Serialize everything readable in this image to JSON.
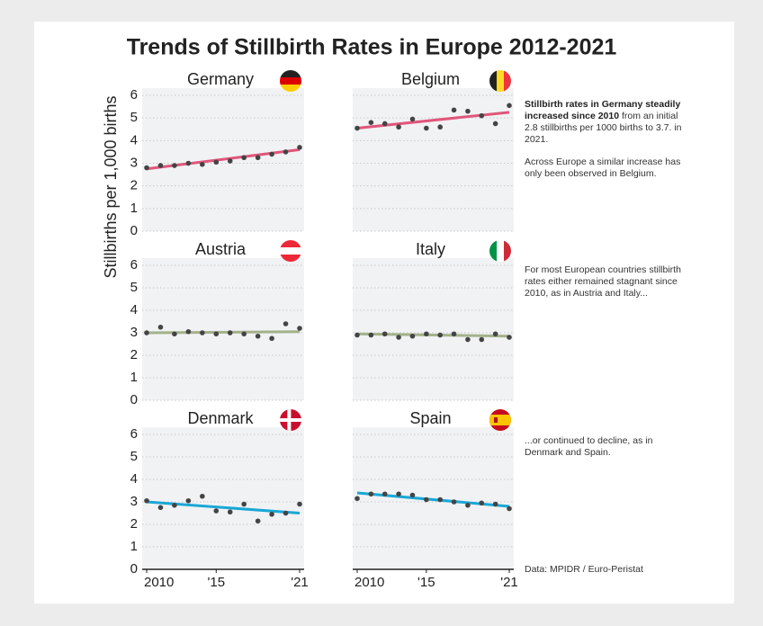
{
  "title": "Trends of Stillbirth Rates in Europe 2012-2021",
  "ylabel": "Stillbirths per 1,000 births",
  "annotations": [
    {
      "bold": "Stillbirth rates in Germany steadily increased since 2010",
      "text": "from an initial 2.8 stillbirths per 1000 births to 3.7. in 2021."
    },
    {
      "text": "Across Europe a similar increase has only been observed in Belgium."
    },
    {
      "text": "For most European countries stillbirth rates either remained stagnant since 2010, as in Austria and Italy..."
    },
    {
      "text": "...or continued to decline, as in Denmark and Spain."
    }
  ],
  "source": "Data: MPIDR / Euro-Peristat",
  "chart_data": [
    {
      "type": "scatter",
      "title": "Germany",
      "x": [
        2010,
        2011,
        2012,
        2013,
        2014,
        2015,
        2016,
        2017,
        2018,
        2019,
        2020,
        2021
      ],
      "values": [
        2.8,
        2.9,
        2.9,
        3.0,
        2.95,
        3.05,
        3.1,
        3.25,
        3.25,
        3.4,
        3.5,
        3.7
      ],
      "color": "#444444",
      "trend": [
        2.75,
        3.6
      ],
      "trend_color": "#e0567a",
      "xlim": [
        2010,
        2021
      ],
      "ylim": [
        0,
        6
      ],
      "yticks": [
        0,
        1,
        2,
        3,
        4,
        5,
        6
      ],
      "grid": true
    },
    {
      "type": "scatter",
      "title": "Belgium",
      "x": [
        2010,
        2011,
        2012,
        2013,
        2014,
        2015,
        2016,
        2017,
        2018,
        2019,
        2020,
        2021
      ],
      "values": [
        4.55,
        4.8,
        4.75,
        4.6,
        4.95,
        4.55,
        4.6,
        5.35,
        5.3,
        5.1,
        4.75,
        5.55
      ],
      "color": "#444444",
      "trend": [
        4.55,
        5.25
      ],
      "trend_color": "#e0567a",
      "xlim": [
        2010,
        2021
      ],
      "ylim": [
        0,
        6
      ],
      "yticks": [
        0,
        1,
        2,
        3,
        4,
        5,
        6
      ],
      "grid": true
    },
    {
      "type": "scatter",
      "title": "Austria",
      "x": [
        2010,
        2011,
        2012,
        2013,
        2014,
        2015,
        2016,
        2017,
        2018,
        2019,
        2020,
        2021
      ],
      "values": [
        3.0,
        3.25,
        2.95,
        3.05,
        3.0,
        2.95,
        3.0,
        2.95,
        2.85,
        2.75,
        3.4,
        3.2
      ],
      "color": "#444444",
      "trend": [
        3.0,
        3.05
      ],
      "trend_color": "#a3b18a",
      "xlim": [
        2010,
        2021
      ],
      "ylim": [
        0,
        6
      ],
      "yticks": [
        0,
        1,
        2,
        3,
        4,
        5,
        6
      ],
      "grid": true
    },
    {
      "type": "scatter",
      "title": "Italy",
      "x": [
        2010,
        2011,
        2012,
        2013,
        2014,
        2015,
        2016,
        2017,
        2018,
        2019,
        2020,
        2021
      ],
      "values": [
        2.9,
        2.9,
        2.95,
        2.8,
        2.85,
        2.95,
        2.9,
        2.95,
        2.7,
        2.7,
        2.95,
        2.8
      ],
      "color": "#444444",
      "trend": [
        2.95,
        2.85
      ],
      "trend_color": "#a3b18a",
      "xlim": [
        2010,
        2021
      ],
      "ylim": [
        0,
        6
      ],
      "yticks": [
        0,
        1,
        2,
        3,
        4,
        5,
        6
      ],
      "grid": true
    },
    {
      "type": "scatter",
      "title": "Denmark",
      "x": [
        2010,
        2011,
        2012,
        2013,
        2014,
        2015,
        2016,
        2017,
        2018,
        2019,
        2020,
        2021
      ],
      "values": [
        3.05,
        2.75,
        2.85,
        3.05,
        3.25,
        2.6,
        2.55,
        2.9,
        2.15,
        2.45,
        2.5,
        2.9
      ],
      "color": "#444444",
      "trend": [
        3.0,
        2.5
      ],
      "trend_color": "#1aa7d6",
      "xlim": [
        2010,
        2021
      ],
      "ylim": [
        0,
        6
      ],
      "yticks": [
        0,
        1,
        2,
        3,
        4,
        5,
        6
      ],
      "xticks": [
        {
          "value": 2010,
          "label": "2010"
        },
        {
          "value": 2015,
          "label": "'15"
        },
        {
          "value": 2021,
          "label": "'21"
        }
      ],
      "grid": true
    },
    {
      "type": "scatter",
      "title": "Spain",
      "x": [
        2010,
        2011,
        2012,
        2013,
        2014,
        2015,
        2016,
        2017,
        2018,
        2019,
        2020,
        2021
      ],
      "values": [
        3.15,
        3.35,
        3.35,
        3.35,
        3.3,
        3.1,
        3.1,
        3.0,
        2.85,
        2.95,
        2.9,
        2.7
      ],
      "color": "#444444",
      "trend": [
        3.4,
        2.8
      ],
      "trend_color": "#1aa7d6",
      "xlim": [
        2010,
        2021
      ],
      "ylim": [
        0,
        6
      ],
      "yticks": [
        0,
        1,
        2,
        3,
        4,
        5,
        6
      ],
      "xticks": [
        {
          "value": 2010,
          "label": "2010"
        },
        {
          "value": 2015,
          "label": "'15"
        },
        {
          "value": 2021,
          "label": "'21"
        }
      ],
      "grid": true
    }
  ]
}
